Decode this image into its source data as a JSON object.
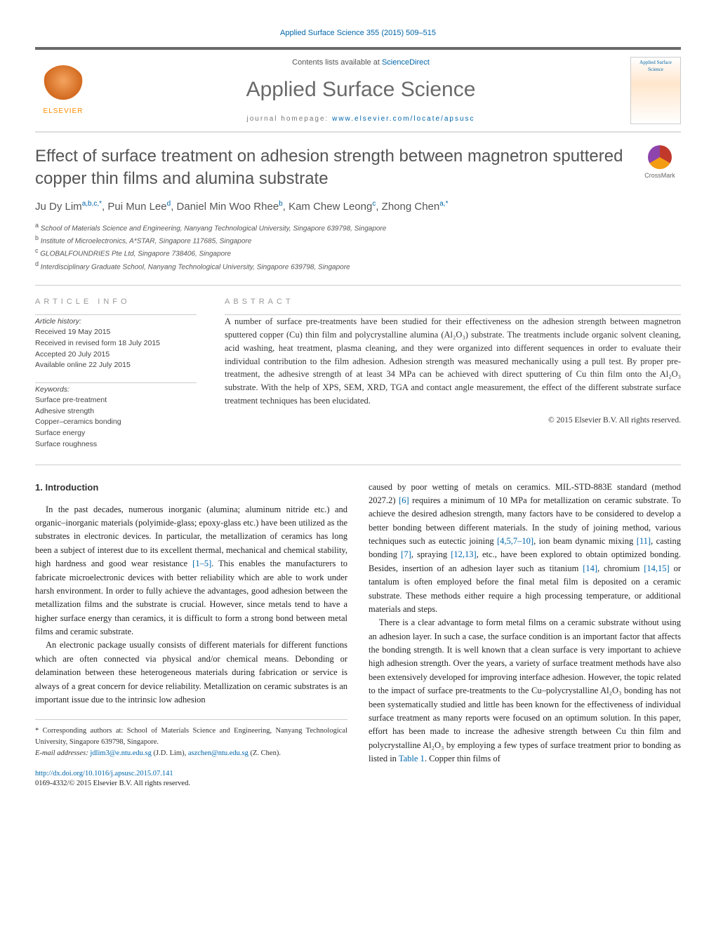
{
  "journal_header_link": "Applied Surface Science 355 (2015) 509–515",
  "masthead": {
    "contents_prefix": "Contents lists available at ",
    "contents_link": "ScienceDirect",
    "journal_name": "Applied Surface Science",
    "homepage_prefix": "journal homepage: ",
    "homepage_link": "www.elsevier.com/locate/apsusc",
    "publisher": "ELSEVIER",
    "cover_text": "Applied Surface Science"
  },
  "crossmark_label": "CrossMark",
  "article_title": "Effect of surface treatment on adhesion strength between magnetron sputtered copper thin films and alumina substrate",
  "authors_html": "Ju Dy Lim",
  "authors": [
    {
      "name": "Ju Dy Lim",
      "sup": "a,b,c,*"
    },
    {
      "name": "Pui Mun Lee",
      "sup": "d"
    },
    {
      "name": "Daniel Min Woo Rhee",
      "sup": "b"
    },
    {
      "name": "Kam Chew Leong",
      "sup": "c"
    },
    {
      "name": "Zhong Chen",
      "sup": "a,*"
    }
  ],
  "affiliations": [
    {
      "sup": "a",
      "text": "School of Materials Science and Engineering, Nanyang Technological University, Singapore 639798, Singapore"
    },
    {
      "sup": "b",
      "text": "Institute of Microelectronics, A*STAR, Singapore 117685, Singapore"
    },
    {
      "sup": "c",
      "text": "GLOBALFOUNDRIES Pte Ltd, Singapore 738406, Singapore"
    },
    {
      "sup": "d",
      "text": "Interdisciplinary Graduate School, Nanyang Technological University, Singapore 639798, Singapore"
    }
  ],
  "info_label": "ARTICLE INFO",
  "abstract_label": "ABSTRACT",
  "history": {
    "head": "Article history:",
    "received": "Received 19 May 2015",
    "revised": "Received in revised form 18 July 2015",
    "accepted": "Accepted 20 July 2015",
    "online": "Available online 22 July 2015"
  },
  "keywords": {
    "head": "Keywords:",
    "items": [
      "Surface pre-treatment",
      "Adhesive strength",
      "Copper–ceramics bonding",
      "Surface energy",
      "Surface roughness"
    ]
  },
  "abstract_text": "A number of surface pre-treatments have been studied for their effectiveness on the adhesion strength between magnetron sputtered copper (Cu) thin film and polycrystalline alumina (Al₂O₃) substrate. The treatments include organic solvent cleaning, acid washing, heat treatment, plasma cleaning, and they were organized into different sequences in order to evaluate their individual contribution to the film adhesion. Adhesion strength was measured mechanically using a pull test. By proper pre-treatment, the adhesive strength of at least 34 MPa can be achieved with direct sputtering of Cu thin film onto the Al₂O₃ substrate. With the help of XPS, SEM, XRD, TGA and contact angle measurement, the effect of the different substrate surface treatment techniques has been elucidated.",
  "copyright": "© 2015 Elsevier B.V. All rights reserved.",
  "section_heading": "1. Introduction",
  "body": {
    "p1a": "In the past decades, numerous inorganic (alumina; aluminum nitride etc.) and organic–inorganic materials (polyimide-glass; epoxy-glass etc.) have been utilized as the substrates in electronic devices. In particular, the metallization of ceramics has long been a subject of interest due to its excellent thermal, mechanical and chemical stability, high hardness and good wear resistance ",
    "ref1": "[1–5]",
    "p1b": ". This enables the manufacturers to fabricate microelectronic devices with better reliability which are able to work under harsh environment. In order to fully achieve the advantages, good adhesion between the metallization films and the substrate is crucial. However, since metals tend to have a higher surface energy than ceramics, it is difficult to form a strong bond between metal films and ceramic substrate.",
    "p2": "An electronic package usually consists of different materials for different functions which are often connected via physical and/or chemical means. Debonding or delamination between these heterogeneous materials during fabrication or service is always of a great concern for device reliability. Metallization on ceramic substrates is an important issue due to the intrinsic low adhesion",
    "p3a": "caused by poor wetting of metals on ceramics. MIL-STD-883E standard (method 2027.2) ",
    "ref6": "[6]",
    "p3b": " requires a minimum of 10 MPa for metallization on ceramic substrate. To achieve the desired adhesion strength, many factors have to be considered to develop a better bonding between different materials. In the study of joining method, various techniques such as eutectic joining ",
    "ref4510": "[4,5,7–10]",
    "p3c": ", ion beam dynamic mixing ",
    "ref11": "[11]",
    "p3d": ", casting bonding ",
    "ref7": "[7]",
    "p3e": ", spraying ",
    "ref1213": "[12,13]",
    "p3f": ", etc., have been explored to obtain optimized bonding. Besides, insertion of an adhesion layer such as titanium ",
    "ref14": "[14]",
    "p3g": ", chromium ",
    "ref1415": "[14,15]",
    "p3h": " or tantalum is often employed before the final metal film is deposited on a ceramic substrate. These methods either require a high processing temperature, or additional materials and steps.",
    "p4a": "There is a clear advantage to form metal films on a ceramic substrate without using an adhesion layer. In such a case, the surface condition is an important factor that affects the bonding strength. It is well known that a clean surface is very important to achieve high adhesion strength. Over the years, a variety of surface treatment methods have also been extensively developed for improving interface adhesion. However, the topic related to the impact of surface pre-treatments to the Cu–polycrystalline Al₂O₃ bonding has not been systematically studied and little has been known for the effectiveness of individual surface treatment as many reports were focused on an optimum solution. In this paper, effort has been made to increase the adhesive strength between Cu thin film and polycrystalline Al₂O₃ by employing a few types of surface treatment prior to bonding as listed in ",
    "reftab1": "Table 1",
    "p4b": ". Copper thin films of"
  },
  "footnotes": {
    "corr": "* Corresponding authors at: School of Materials Science and Engineering, Nanyang Technological University, Singapore 639798, Singapore.",
    "emails_label": "E-mail addresses: ",
    "email1": "jdlim3@e.ntu.edu.sg",
    "email1_who": " (J.D. Lim), ",
    "email2": "aszchen@ntu.edu.sg",
    "email2_who": " (Z. Chen)."
  },
  "doi": {
    "link": "http://dx.doi.org/10.1016/j.apsusc.2015.07.141",
    "issn_line": "0169-4332/© 2015 Elsevier B.V. All rights reserved."
  },
  "colors": {
    "link": "#0066aa",
    "heading_gray": "#6a6a6a",
    "text": "#333333",
    "light_rule": "#cccccc"
  }
}
